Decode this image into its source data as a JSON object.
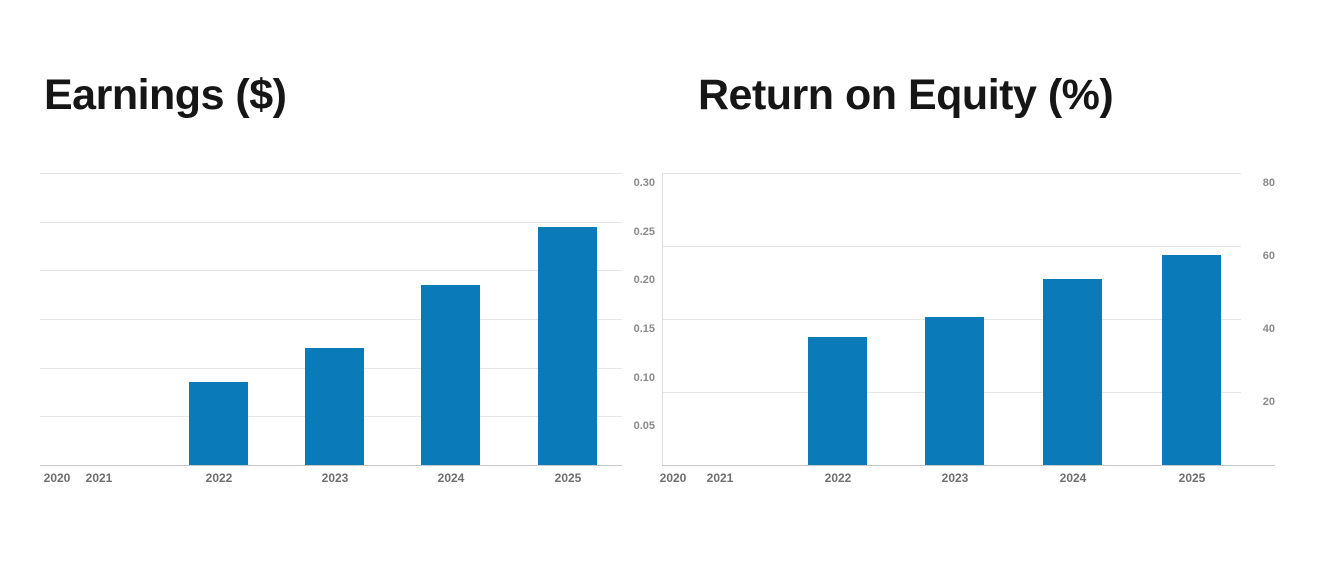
{
  "page": {
    "background": "#ffffff"
  },
  "colors": {
    "title": "#161616",
    "grid": "#e6e6e6",
    "axis": "#c9c9c9",
    "panel_border": "#dcdcdc",
    "ytick": "#8a8a8a",
    "xtick": "#6e6e6e",
    "bar": "#0b7ab8"
  },
  "chart_data": [
    {
      "type": "bar",
      "title": "Earnings ($)",
      "categories": [
        "2020",
        "2021",
        "2022",
        "2023",
        "2024",
        "2025"
      ],
      "values": [
        null,
        null,
        0.085,
        0.12,
        0.185,
        0.245
      ],
      "ylim": [
        0,
        0.3
      ],
      "ytick_values": [
        0.05,
        0.1,
        0.15,
        0.2,
        0.25,
        0.3
      ],
      "ytick_labels": [
        "0.05",
        "0.10",
        "0.15",
        "0.20",
        "0.25",
        "0.30"
      ],
      "ylabels_side": "right",
      "grid": "horizontal-only",
      "legend": "none",
      "bar_color": "#0b7ab8"
    },
    {
      "type": "bar",
      "title": "Return on Equity (%)",
      "categories": [
        "2020",
        "2021",
        "2022",
        "2023",
        "2024",
        "2025"
      ],
      "values": [
        null,
        null,
        35,
        40.5,
        51,
        57.5
      ],
      "ylim": [
        0,
        80
      ],
      "ytick_values": [
        20,
        40,
        60,
        80
      ],
      "ytick_labels": [
        "20",
        "40",
        "60",
        "80"
      ],
      "ylabels_side": "right",
      "grid": "horizontal-only",
      "legend": "none",
      "bar_color": "#0b7ab8"
    }
  ]
}
